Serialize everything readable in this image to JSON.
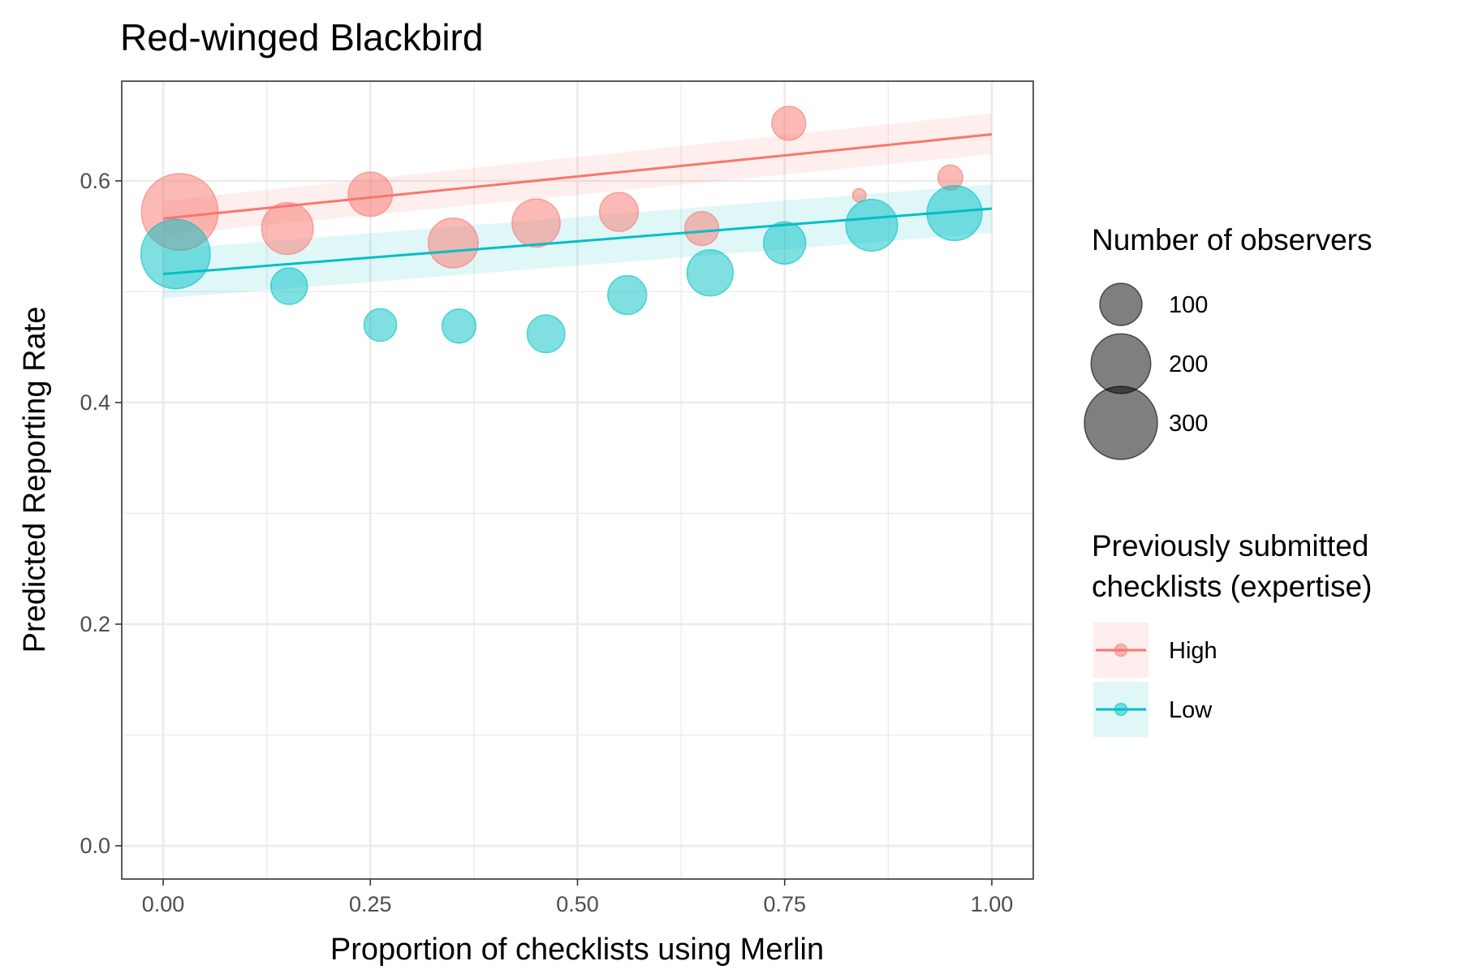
{
  "chart_data": {
    "type": "scatter",
    "title": "Red-winged Blackbird",
    "xlabel": "Proportion of checklists using Merlin",
    "ylabel": "Predicted Reporting Rate",
    "xlim": [
      -0.05,
      1.05
    ],
    "ylim": [
      -0.03,
      0.69
    ],
    "x_ticks": [
      0.0,
      0.25,
      0.5,
      0.75,
      1.0
    ],
    "x_tick_labels": [
      "0.00",
      "0.25",
      "0.50",
      "0.75",
      "1.00"
    ],
    "y_ticks": [
      0.0,
      0.2,
      0.4,
      0.6
    ],
    "y_tick_labels": [
      "0.0",
      "0.2",
      "0.4",
      "0.6"
    ],
    "grid": true,
    "legend_position": "right",
    "size_legend": {
      "title": "Number of observers",
      "entries": [
        {
          "label": "100",
          "value": 100
        },
        {
          "label": "200",
          "value": 200
        },
        {
          "label": "300",
          "value": 300
        }
      ]
    },
    "color_legend": {
      "title_lines": [
        "Previously submitted",
        "checklists (expertise)"
      ]
    },
    "series": [
      {
        "name": "High",
        "color": "#F8766D",
        "points": [
          {
            "x": 0.02,
            "y": 0.572,
            "n": 330
          },
          {
            "x": 0.15,
            "y": 0.557,
            "n": 150
          },
          {
            "x": 0.25,
            "y": 0.588,
            "n": 110
          },
          {
            "x": 0.35,
            "y": 0.544,
            "n": 140
          },
          {
            "x": 0.45,
            "y": 0.562,
            "n": 130
          },
          {
            "x": 0.55,
            "y": 0.572,
            "n": 85
          },
          {
            "x": 0.65,
            "y": 0.557,
            "n": 65
          },
          {
            "x": 0.755,
            "y": 0.652,
            "n": 65
          },
          {
            "x": 0.84,
            "y": 0.587,
            "n": 10
          },
          {
            "x": 0.95,
            "y": 0.603,
            "n": 35
          }
        ],
        "fit": {
          "x0": 0.0,
          "y0": 0.566,
          "x1": 1.0,
          "y1": 0.642,
          "lo0": 0.551,
          "hi0": 0.582,
          "lo1": 0.624,
          "hi1": 0.661
        }
      },
      {
        "name": "Low",
        "color": "#00BFC4",
        "points": [
          {
            "x": 0.015,
            "y": 0.534,
            "n": 270
          },
          {
            "x": 0.152,
            "y": 0.505,
            "n": 75
          },
          {
            "x": 0.262,
            "y": 0.47,
            "n": 60
          },
          {
            "x": 0.357,
            "y": 0.469,
            "n": 65
          },
          {
            "x": 0.462,
            "y": 0.462,
            "n": 80
          },
          {
            "x": 0.56,
            "y": 0.497,
            "n": 85
          },
          {
            "x": 0.66,
            "y": 0.517,
            "n": 120
          },
          {
            "x": 0.75,
            "y": 0.544,
            "n": 100
          },
          {
            "x": 0.855,
            "y": 0.56,
            "n": 150
          },
          {
            "x": 0.955,
            "y": 0.571,
            "n": 170
          }
        ],
        "fit": {
          "x0": 0.0,
          "y0": 0.516,
          "x1": 1.0,
          "y1": 0.575,
          "lo0": 0.494,
          "hi0": 0.538,
          "lo1": 0.553,
          "hi1": 0.597
        }
      }
    ]
  }
}
